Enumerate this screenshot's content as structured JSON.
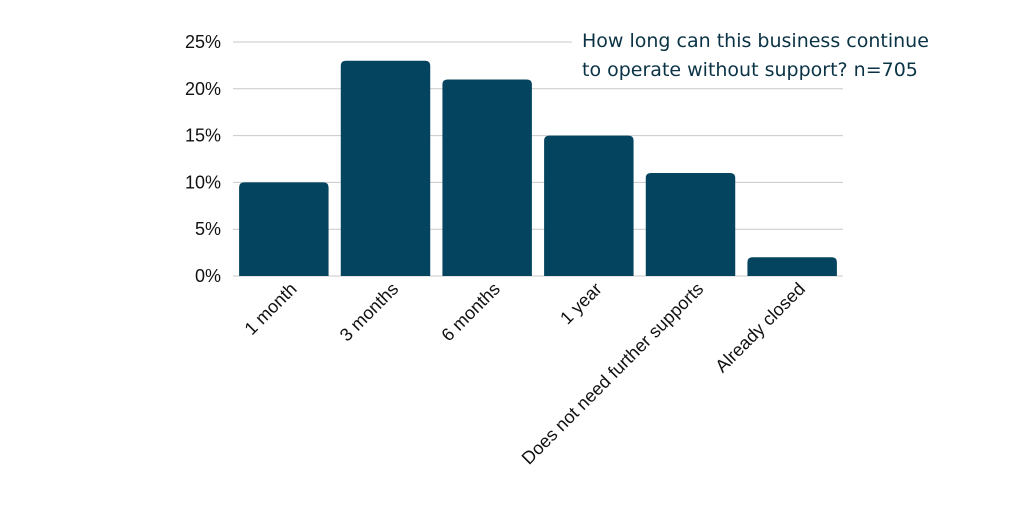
{
  "chart_data": {
    "type": "bar",
    "title_lines": [
      "How long can this business continue",
      "to operate without support? n=705"
    ],
    "categories": [
      "1 month",
      "3 months",
      "6 months",
      "1 year",
      "Does not need further supports",
      "Already closed"
    ],
    "values": [
      10,
      23,
      21,
      15,
      11,
      2
    ],
    "unit": "%",
    "ylim": [
      0,
      25
    ],
    "yticks": [
      0,
      5,
      10,
      15,
      20,
      25
    ],
    "ytick_labels": [
      "0%",
      "5%",
      "10%",
      "15%",
      "20%",
      "25%"
    ],
    "grid": true,
    "bar_color": "#05445e"
  }
}
